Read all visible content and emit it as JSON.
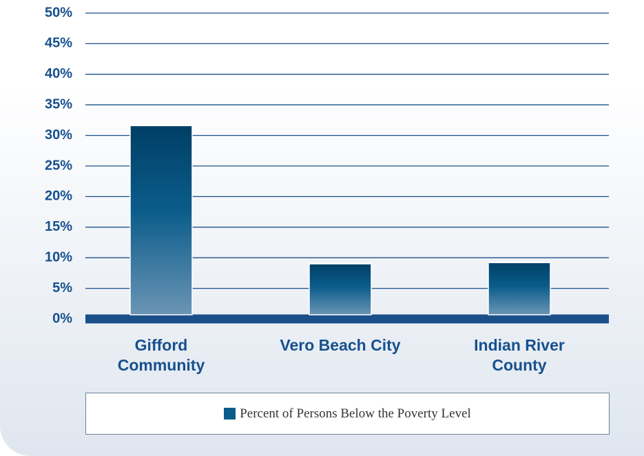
{
  "chart_data": {
    "type": "bar",
    "categories": [
      "Gifford Community",
      "Vero Beach City",
      "Indian River County"
    ],
    "series": [
      {
        "name": "Percent of Persons Below the Poverty Level",
        "color": "#0b5c8a",
        "values": [
          31.6,
          9.0,
          9.2
        ]
      }
    ],
    "ylim": [
      0,
      50
    ],
    "yticks": [
      {
        "value": 0,
        "label": "0%"
      },
      {
        "value": 5,
        "label": "5%"
      },
      {
        "value": 10,
        "label": "10%"
      },
      {
        "value": 15,
        "label": "15%"
      },
      {
        "value": 20,
        "label": "20%"
      },
      {
        "value": 25,
        "label": "25%"
      },
      {
        "value": 30,
        "label": "30%"
      },
      {
        "value": 35,
        "label": "35%"
      },
      {
        "value": 40,
        "label": "40%"
      },
      {
        "value": 45,
        "label": "45%"
      },
      {
        "value": 50,
        "label": "50%"
      }
    ],
    "grid": true
  }
}
